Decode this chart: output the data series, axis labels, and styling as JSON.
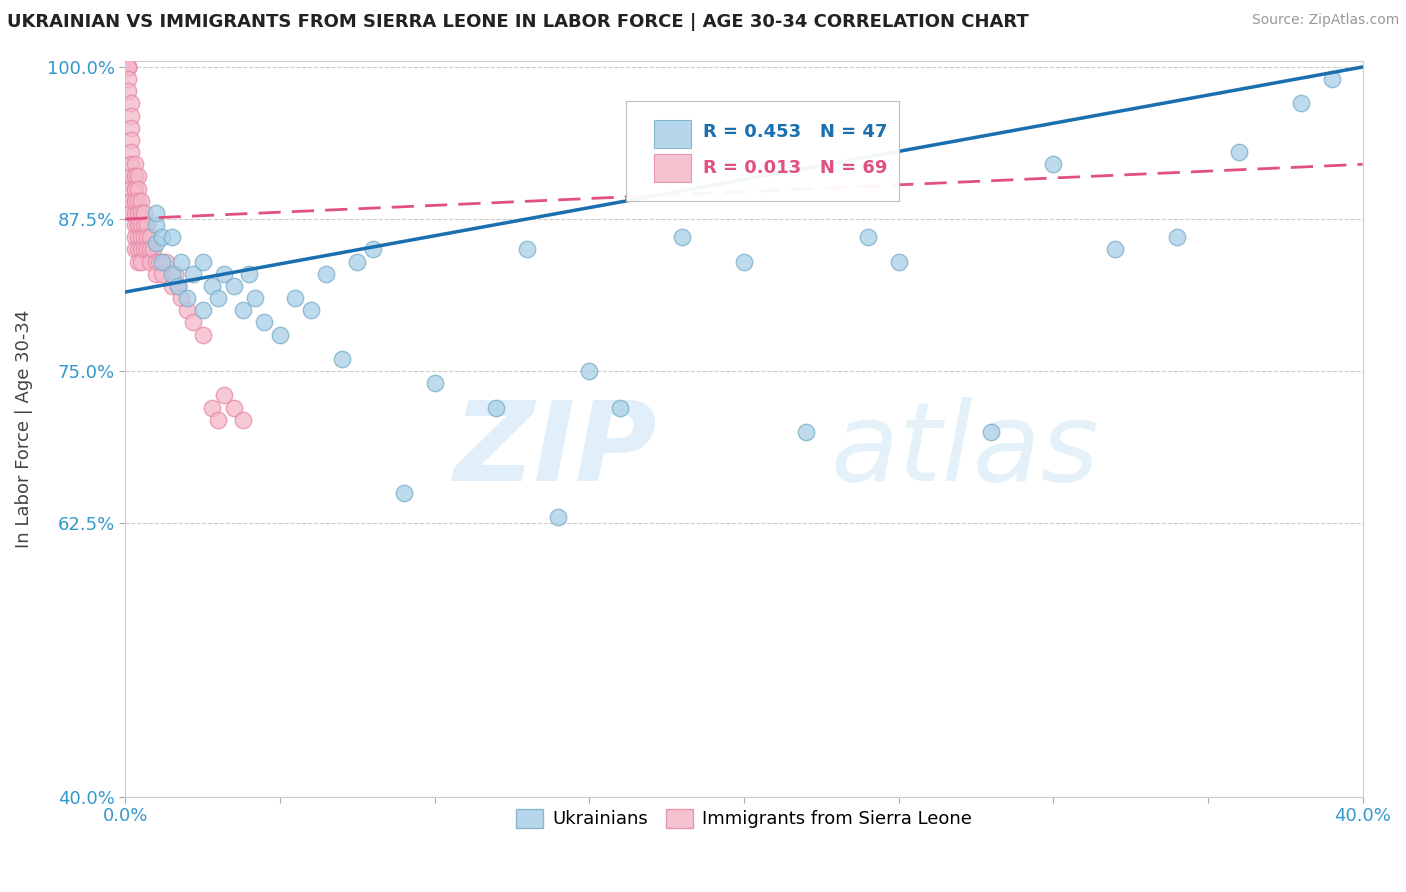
{
  "title": "UKRAINIAN VS IMMIGRANTS FROM SIERRA LEONE IN LABOR FORCE | AGE 30-34 CORRELATION CHART",
  "source": "Source: ZipAtlas.com",
  "ylabel": "In Labor Force | Age 30-34",
  "xlim": [
    0.0,
    0.4
  ],
  "ylim": [
    0.4,
    1.005
  ],
  "xticks": [
    0.0,
    0.05,
    0.1,
    0.15,
    0.2,
    0.25,
    0.3,
    0.35,
    0.4
  ],
  "yticks": [
    0.4,
    0.625,
    0.75,
    0.875,
    1.0
  ],
  "ytick_labels": [
    "40.0%",
    "62.5%",
    "75.0%",
    "87.5%",
    "100.0%"
  ],
  "blue_color": "#a8cfe8",
  "pink_color": "#f4b8c8",
  "blue_edge": "#7aaec8",
  "pink_edge": "#e888a8",
  "blue_line_color": "#1a6faf",
  "pink_line_color": "#e05080",
  "R_blue": 0.453,
  "N_blue": 47,
  "R_pink": 0.013,
  "N_pink": 69,
  "blue_x": [
    0.01,
    0.01,
    0.01,
    0.012,
    0.012,
    0.015,
    0.015,
    0.017,
    0.018,
    0.02,
    0.022,
    0.025,
    0.025,
    0.028,
    0.03,
    0.032,
    0.035,
    0.038,
    0.04,
    0.042,
    0.045,
    0.05,
    0.055,
    0.06,
    0.065,
    0.07,
    0.075,
    0.08,
    0.09,
    0.1,
    0.12,
    0.13,
    0.14,
    0.15,
    0.16,
    0.18,
    0.2,
    0.22,
    0.24,
    0.25,
    0.28,
    0.3,
    0.32,
    0.34,
    0.36,
    0.38,
    0.39
  ],
  "blue_y": [
    0.855,
    0.87,
    0.88,
    0.84,
    0.86,
    0.83,
    0.86,
    0.82,
    0.84,
    0.81,
    0.83,
    0.8,
    0.84,
    0.82,
    0.81,
    0.83,
    0.82,
    0.8,
    0.83,
    0.81,
    0.79,
    0.78,
    0.81,
    0.8,
    0.83,
    0.76,
    0.84,
    0.85,
    0.65,
    0.74,
    0.72,
    0.85,
    0.63,
    0.75,
    0.72,
    0.86,
    0.84,
    0.7,
    0.86,
    0.84,
    0.7,
    0.92,
    0.85,
    0.86,
    0.93,
    0.97,
    0.99
  ],
  "pink_x": [
    0.001,
    0.001,
    0.001,
    0.001,
    0.001,
    0.002,
    0.002,
    0.002,
    0.002,
    0.002,
    0.002,
    0.002,
    0.002,
    0.002,
    0.002,
    0.003,
    0.003,
    0.003,
    0.003,
    0.003,
    0.003,
    0.003,
    0.003,
    0.003,
    0.003,
    0.003,
    0.004,
    0.004,
    0.004,
    0.004,
    0.004,
    0.004,
    0.004,
    0.004,
    0.004,
    0.005,
    0.005,
    0.005,
    0.005,
    0.005,
    0.005,
    0.006,
    0.006,
    0.006,
    0.006,
    0.007,
    0.007,
    0.007,
    0.008,
    0.008,
    0.008,
    0.009,
    0.01,
    0.01,
    0.011,
    0.012,
    0.013,
    0.015,
    0.016,
    0.017,
    0.018,
    0.02,
    0.022,
    0.025,
    0.028,
    0.03,
    0.032,
    0.035,
    0.038
  ],
  "pink_y": [
    1.0,
    1.0,
    1.0,
    0.99,
    0.98,
    0.97,
    0.96,
    0.95,
    0.94,
    0.93,
    0.92,
    0.91,
    0.9,
    0.89,
    0.88,
    0.92,
    0.91,
    0.9,
    0.89,
    0.88,
    0.87,
    0.86,
    0.85,
    0.91,
    0.9,
    0.89,
    0.91,
    0.9,
    0.89,
    0.88,
    0.87,
    0.86,
    0.85,
    0.84,
    0.87,
    0.89,
    0.88,
    0.87,
    0.86,
    0.85,
    0.84,
    0.88,
    0.87,
    0.86,
    0.85,
    0.87,
    0.86,
    0.85,
    0.86,
    0.85,
    0.84,
    0.85,
    0.84,
    0.83,
    0.84,
    0.83,
    0.84,
    0.82,
    0.83,
    0.82,
    0.81,
    0.8,
    0.79,
    0.78,
    0.72,
    0.71,
    0.73,
    0.72,
    0.71
  ]
}
